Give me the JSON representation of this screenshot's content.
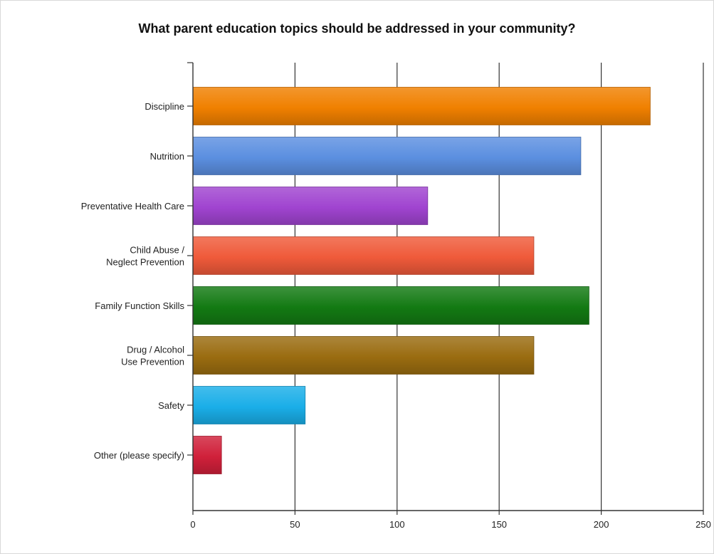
{
  "chart_data": {
    "type": "bar",
    "orientation": "horizontal",
    "title": "What parent education topics should be addressed in your community?",
    "xlabel": "",
    "ylabel": "",
    "xlim": [
      0,
      250
    ],
    "x_ticks": [
      "0",
      "50",
      "100",
      "150",
      "200",
      "250"
    ],
    "grid": "vertical",
    "categories": [
      "Discipline",
      "Nutrition",
      "Preventative Health Care",
      "Child Abuse / Neglect Prevention",
      "Family Function Skills",
      "Drug / Alcohol Use Prevention",
      "Safety",
      "Other (please specify)"
    ],
    "category_lines": [
      [
        "Discipline"
      ],
      [
        "Nutrition"
      ],
      [
        "Preventative Health Care"
      ],
      [
        "Child Abuse /",
        "Neglect Prevention"
      ],
      [
        "Family Function Skills"
      ],
      [
        "Drug / Alcohol",
        "Use Prevention"
      ],
      [
        "Safety"
      ],
      [
        "Other (please specify)"
      ]
    ],
    "values": [
      224,
      190,
      115,
      167,
      194,
      167,
      55,
      14
    ],
    "colors": [
      "#f08000",
      "#5b8fe0",
      "#a044d0",
      "#ef5a3a",
      "#137a13",
      "#9a6c10",
      "#1aaee8",
      "#d0203a"
    ]
  }
}
